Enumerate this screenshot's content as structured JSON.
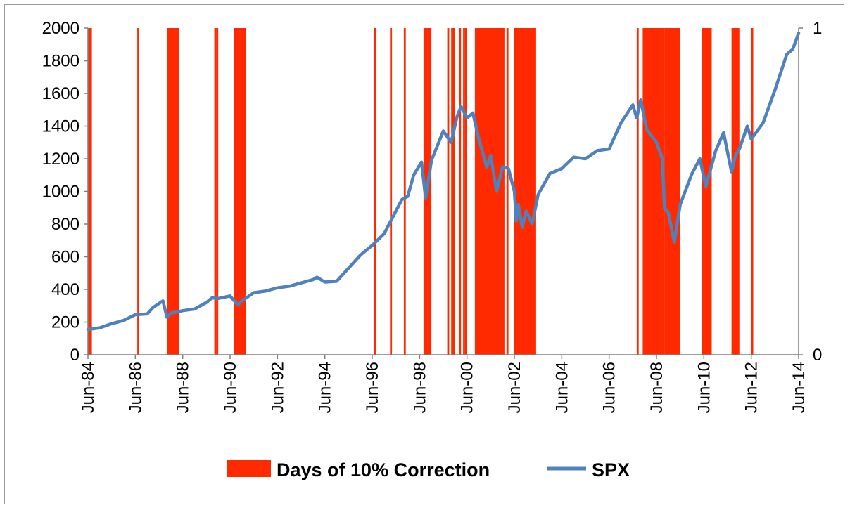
{
  "chart_data": {
    "type": "line",
    "title": "",
    "xlabel": "",
    "ylabel": "",
    "x_range": [
      "1984-06",
      "2014-06"
    ],
    "x_ticks": [
      "Jun-84",
      "Jun-86",
      "Jun-88",
      "Jun-90",
      "Jun-92",
      "Jun-94",
      "Jun-96",
      "Jun-98",
      "Jun-00",
      "Jun-02",
      "Jun-04",
      "Jun-06",
      "Jun-08",
      "Jun-10",
      "Jun-12",
      "Jun-14"
    ],
    "y_left": {
      "min": 0,
      "max": 2000,
      "ticks": [
        "0",
        "200",
        "400",
        "600",
        "800",
        "1000",
        "1200",
        "1400",
        "1600",
        "1800",
        "2000"
      ]
    },
    "y_right": {
      "min": 0,
      "max": 1,
      "ticks": [
        "0",
        "1"
      ]
    },
    "grid": false,
    "legend": {
      "position": "bottom",
      "entries": [
        "Days of 10% Correction",
        "SPX"
      ]
    },
    "colors": {
      "correction": "#ff2a00",
      "spx": "#4f81bd"
    },
    "series": [
      {
        "name": "SPX",
        "axis": "left",
        "points": [
          [
            "1984-06",
            155
          ],
          [
            "1984-12",
            165
          ],
          [
            "1985-06",
            190
          ],
          [
            "1985-12",
            210
          ],
          [
            "1986-06",
            245
          ],
          [
            "1986-12",
            250
          ],
          [
            "1987-03",
            290
          ],
          [
            "1987-08",
            330
          ],
          [
            "1987-10",
            230
          ],
          [
            "1987-12",
            255
          ],
          [
            "1988-06",
            270
          ],
          [
            "1988-12",
            280
          ],
          [
            "1989-06",
            320
          ],
          [
            "1989-09",
            350
          ],
          [
            "1989-12",
            345
          ],
          [
            "1990-06",
            360
          ],
          [
            "1990-10",
            305
          ],
          [
            "1990-12",
            330
          ],
          [
            "1991-06",
            380
          ],
          [
            "1991-12",
            390
          ],
          [
            "1992-06",
            410
          ],
          [
            "1992-12",
            420
          ],
          [
            "1993-06",
            440
          ],
          [
            "1993-12",
            460
          ],
          [
            "1994-02",
            475
          ],
          [
            "1994-06",
            445
          ],
          [
            "1994-12",
            450
          ],
          [
            "1995-06",
            530
          ],
          [
            "1995-12",
            610
          ],
          [
            "1996-06",
            670
          ],
          [
            "1996-12",
            740
          ],
          [
            "1997-06",
            880
          ],
          [
            "1997-09",
            950
          ],
          [
            "1997-12",
            970
          ],
          [
            "1998-03",
            1100
          ],
          [
            "1998-07",
            1180
          ],
          [
            "1998-09",
            960
          ],
          [
            "1998-12",
            1190
          ],
          [
            "1999-06",
            1370
          ],
          [
            "1999-10",
            1300
          ],
          [
            "2000-01",
            1460
          ],
          [
            "2000-03",
            1520
          ],
          [
            "2000-06",
            1450
          ],
          [
            "2000-09",
            1480
          ],
          [
            "2000-12",
            1320
          ],
          [
            "2001-04",
            1150
          ],
          [
            "2001-06",
            1220
          ],
          [
            "2001-09",
            1000
          ],
          [
            "2001-12",
            1150
          ],
          [
            "2002-03",
            1140
          ],
          [
            "2002-06",
            1000
          ],
          [
            "2002-07",
            820
          ],
          [
            "2002-08",
            920
          ],
          [
            "2002-10",
            780
          ],
          [
            "2002-12",
            880
          ],
          [
            "2003-03",
            800
          ],
          [
            "2003-06",
            980
          ],
          [
            "2003-12",
            1110
          ],
          [
            "2004-06",
            1140
          ],
          [
            "2004-12",
            1210
          ],
          [
            "2005-06",
            1200
          ],
          [
            "2005-12",
            1250
          ],
          [
            "2006-06",
            1260
          ],
          [
            "2006-12",
            1420
          ],
          [
            "2007-06",
            1530
          ],
          [
            "2007-08",
            1450
          ],
          [
            "2007-10",
            1560
          ],
          [
            "2008-01",
            1380
          ],
          [
            "2008-06",
            1300
          ],
          [
            "2008-09",
            1200
          ],
          [
            "2008-10",
            900
          ],
          [
            "2008-12",
            870
          ],
          [
            "2009-03",
            690
          ],
          [
            "2009-06",
            920
          ],
          [
            "2009-12",
            1110
          ],
          [
            "2010-04",
            1200
          ],
          [
            "2010-07",
            1030
          ],
          [
            "2010-12",
            1250
          ],
          [
            "2011-04",
            1360
          ],
          [
            "2011-08",
            1120
          ],
          [
            "2011-10",
            1220
          ],
          [
            "2011-12",
            1260
          ],
          [
            "2012-04",
            1400
          ],
          [
            "2012-06",
            1320
          ],
          [
            "2012-12",
            1420
          ],
          [
            "2013-06",
            1620
          ],
          [
            "2013-12",
            1840
          ],
          [
            "2014-03",
            1870
          ],
          [
            "2014-06",
            1970
          ]
        ]
      },
      {
        "name": "Days of 10% Correction",
        "axis": "right",
        "style": "bars",
        "value": 1,
        "intervals": [
          [
            "1984-06",
            "1984-07"
          ],
          [
            "1986-07",
            "1986-07"
          ],
          [
            "1987-10",
            "1988-03"
          ],
          [
            "1989-10",
            "1989-10"
          ],
          [
            "1989-11",
            "1989-11"
          ],
          [
            "1990-08",
            "1991-01"
          ],
          [
            "1996-07",
            "1996-07"
          ],
          [
            "1997-03",
            "1997-03"
          ],
          [
            "1997-10",
            "1997-10"
          ],
          [
            "1998-08",
            "1998-11"
          ],
          [
            "1999-08",
            "1999-08"
          ],
          [
            "1999-10",
            "1999-11"
          ],
          [
            "2000-02",
            "2000-02"
          ],
          [
            "2000-04",
            "2000-04"
          ],
          [
            "2000-05",
            "2000-05"
          ],
          [
            "2000-10",
            "2001-01"
          ],
          [
            "2001-02",
            "2001-06"
          ],
          [
            "2001-07",
            "2001-12"
          ],
          [
            "2002-02",
            "2002-02"
          ],
          [
            "2002-06",
            "2003-04"
          ],
          [
            "2007-08",
            "2007-08"
          ],
          [
            "2007-11",
            "2008-01"
          ],
          [
            "2008-01",
            "2008-09"
          ],
          [
            "2008-10",
            "2009-05"
          ],
          [
            "2010-05",
            "2010-05"
          ],
          [
            "2010-06",
            "2010-09"
          ],
          [
            "2011-08",
            "2011-11"
          ],
          [
            "2012-06",
            "2012-06"
          ]
        ]
      }
    ]
  }
}
